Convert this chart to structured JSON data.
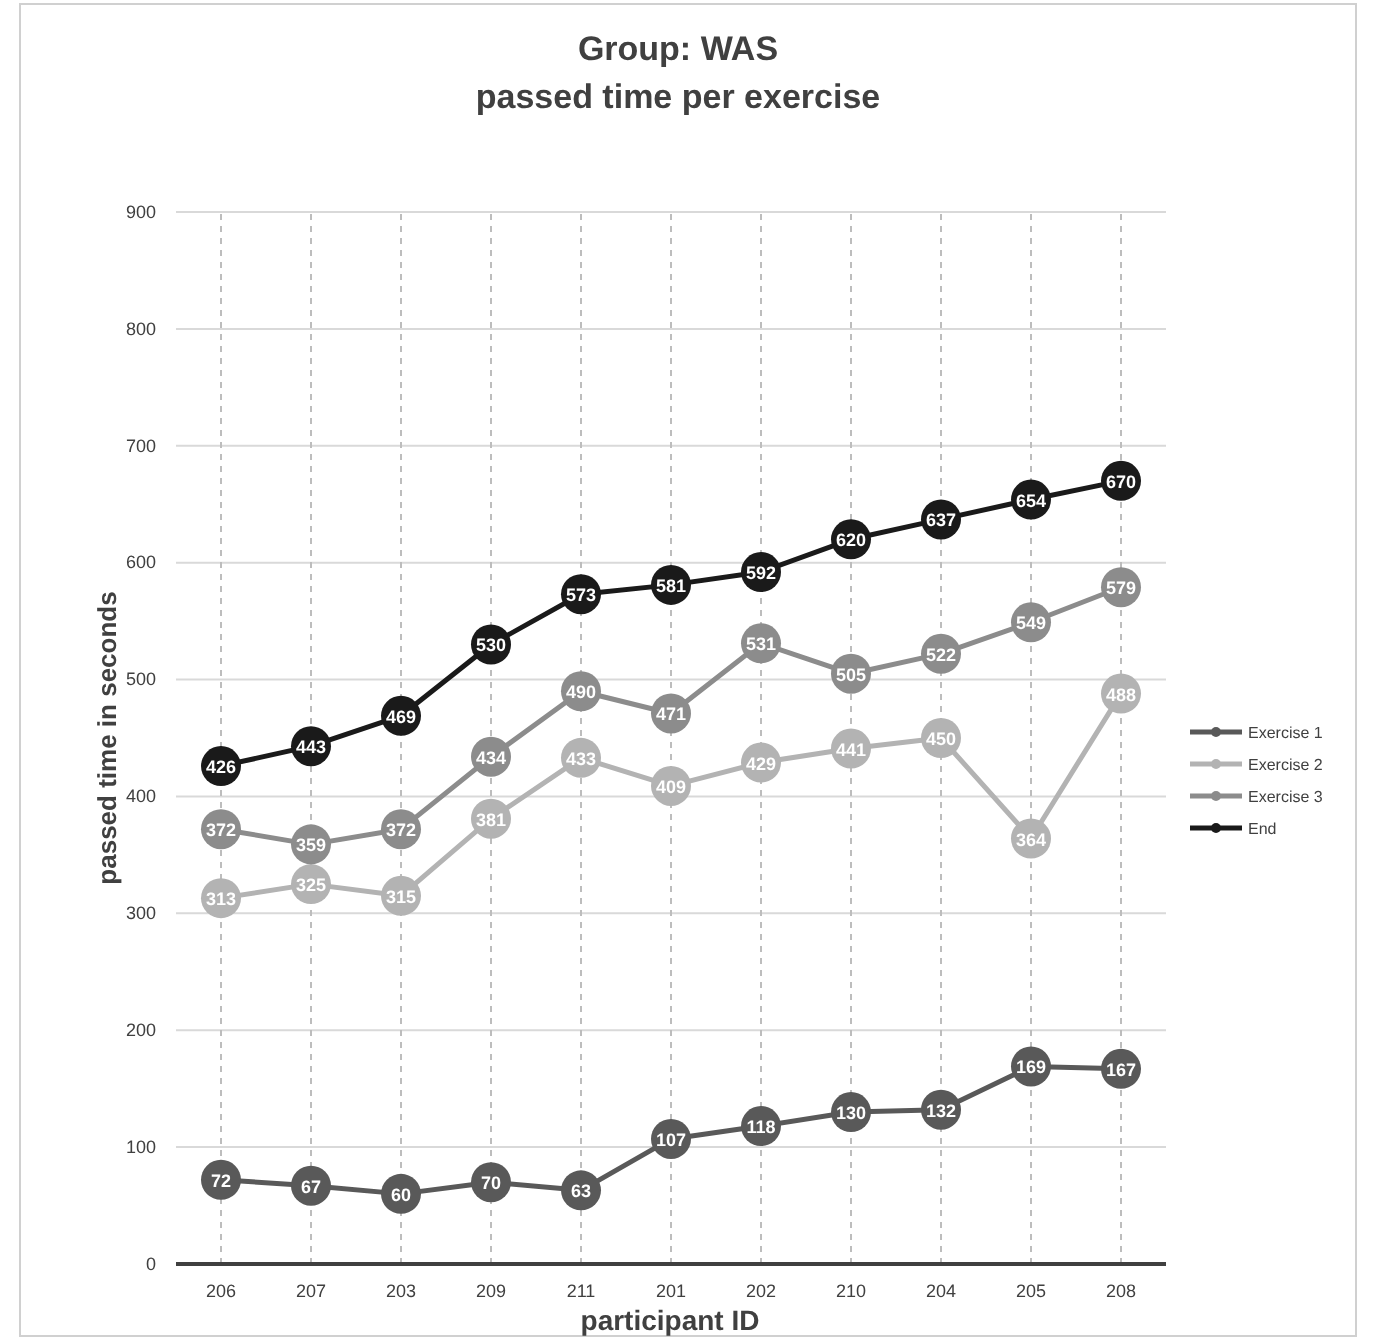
{
  "chart_data": {
    "type": "line",
    "title": "Group: WAS\npassed time per exercise",
    "xlabel": "participant ID",
    "ylabel": "passed time in seconds",
    "categories": [
      "206",
      "207",
      "203",
      "209",
      "211",
      "201",
      "202",
      "210",
      "204",
      "205",
      "208"
    ],
    "series": [
      {
        "name": "Exercise 1",
        "color": "#595959",
        "values": [
          72,
          67,
          60,
          70,
          63,
          107,
          118,
          130,
          132,
          169,
          167
        ]
      },
      {
        "name": "Exercise 2",
        "color": "#b3b3b3",
        "values": [
          313,
          325,
          315,
          381,
          433,
          409,
          429,
          441,
          450,
          364,
          488
        ]
      },
      {
        "name": "Exercise 3",
        "color": "#8c8c8c",
        "values": [
          372,
          359,
          372,
          434,
          490,
          471,
          531,
          505,
          522,
          549,
          579
        ]
      },
      {
        "name": "End",
        "color": "#1a1a1a",
        "values": [
          426,
          443,
          469,
          530,
          573,
          581,
          592,
          620,
          637,
          654,
          670
        ]
      }
    ],
    "ylim": [
      0,
      900
    ],
    "yticks": [
      0,
      100,
      200,
      300,
      400,
      500,
      600,
      700,
      800,
      900
    ],
    "grid": true,
    "legend": "right",
    "marker": "circle",
    "line_style": "solid",
    "data_labels": true
  }
}
